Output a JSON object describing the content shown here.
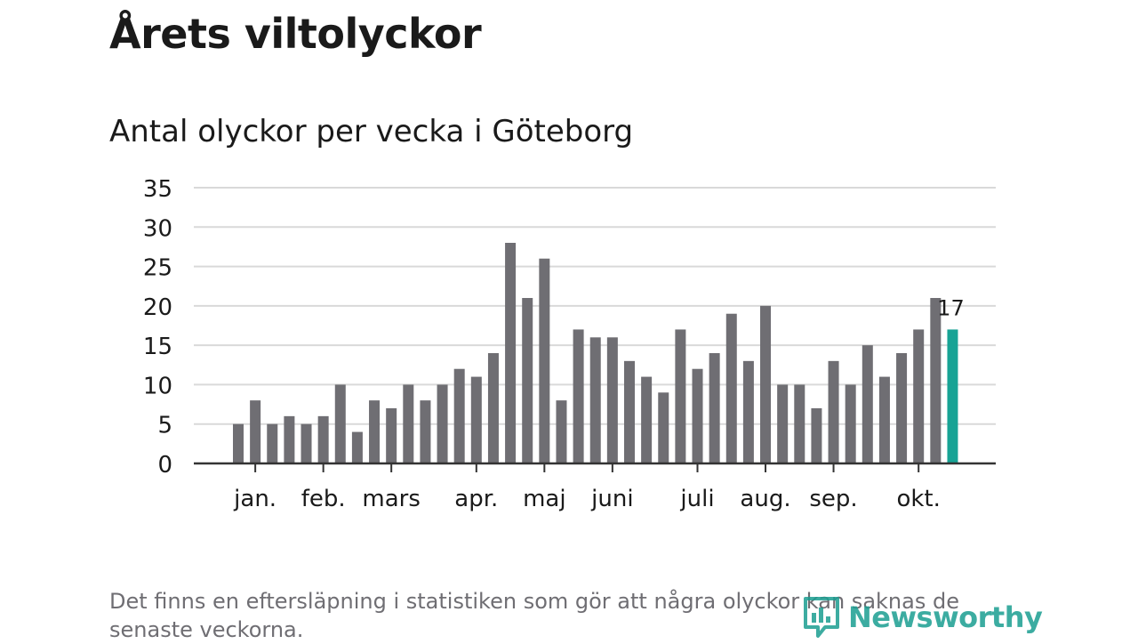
{
  "header": {
    "title": "Årets viltolyckor",
    "subtitle": "Antal olyckor per vecka i Göteborg"
  },
  "footer": {
    "note": "Det finns en eftersläpning i statistiken som gör att några olyckor kan saknas de senaste veckorna.",
    "logo_text": "Newsworthy"
  },
  "colors": {
    "bar": "#6f6e73",
    "highlight": "#17a395",
    "grid": "#d9d9d9",
    "axis": "#333333",
    "brand": "#1b9e91"
  },
  "chart_data": {
    "type": "bar",
    "title": "Antal olyckor per vecka i Göteborg",
    "xlabel": "",
    "ylabel": "",
    "ylim": [
      0,
      35
    ],
    "y_ticks": [
      0,
      5,
      10,
      15,
      20,
      25,
      30,
      35
    ],
    "grid": true,
    "values": [
      5,
      8,
      5,
      6,
      5,
      6,
      10,
      4,
      8,
      7,
      10,
      8,
      10,
      12,
      11,
      14,
      28,
      21,
      26,
      8,
      17,
      16,
      16,
      13,
      11,
      9,
      17,
      12,
      14,
      19,
      13,
      20,
      10,
      10,
      7,
      13,
      10,
      15,
      11,
      14,
      17,
      21,
      17
    ],
    "month_labels": [
      {
        "label": "jan.",
        "week": 1
      },
      {
        "label": "feb.",
        "week": 5
      },
      {
        "label": "mars",
        "week": 9
      },
      {
        "label": "apr.",
        "week": 14
      },
      {
        "label": "maj",
        "week": 18
      },
      {
        "label": "juni",
        "week": 22
      },
      {
        "label": "juli",
        "week": 27
      },
      {
        "label": "aug.",
        "week": 31
      },
      {
        "label": "sep.",
        "week": 35
      },
      {
        "label": "okt.",
        "week": 40
      }
    ],
    "highlight_index": 42,
    "highlight_label": "17"
  }
}
